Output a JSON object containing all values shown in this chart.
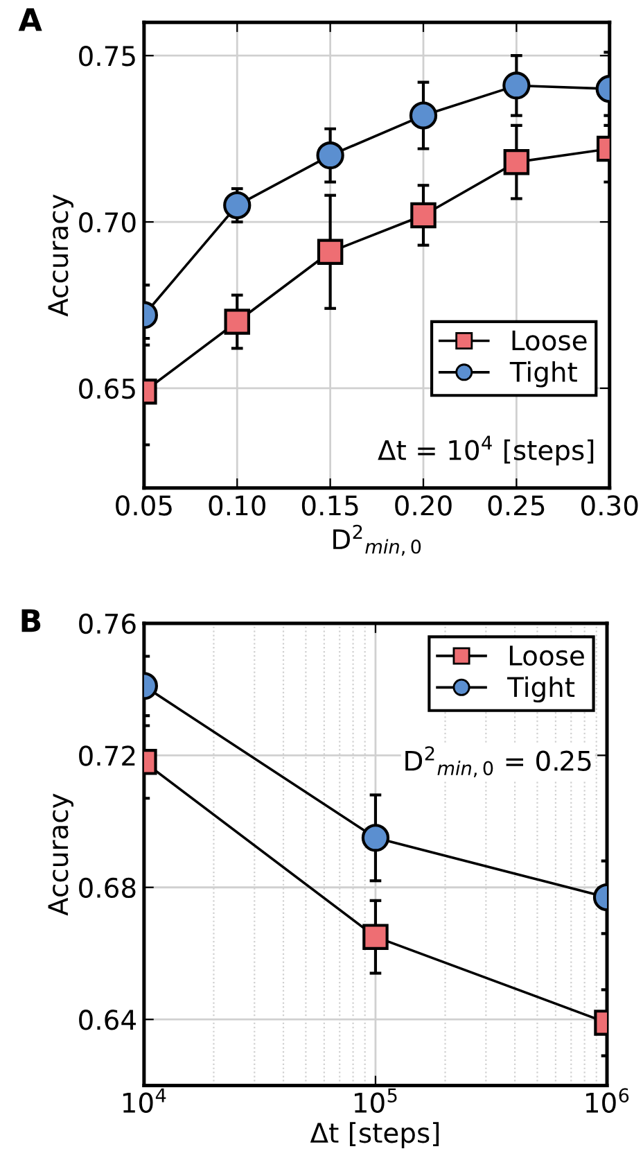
{
  "chart_data": [
    {
      "type": "line",
      "title": "A",
      "xlabel": "D$^{2}$$_{min,0}$",
      "ylabel": "Accuracy",
      "x": [
        0.05,
        0.1,
        0.15,
        0.2,
        0.25,
        0.3
      ],
      "series": [
        {
          "name": "Loose",
          "color": "#ee6e73",
          "marker": "square",
          "values": [
            0.649,
            0.67,
            0.691,
            0.702,
            0.718,
            0.722
          ],
          "errors": [
            0.016,
            0.008,
            0.017,
            0.009,
            0.011,
            0.01
          ]
        },
        {
          "name": "Tight",
          "color": "#5b8fd0",
          "marker": "circle",
          "values": [
            0.672,
            0.705,
            0.72,
            0.732,
            0.741,
            0.74
          ],
          "errors": [
            0.009,
            0.005,
            0.008,
            0.01,
            0.009,
            0.011
          ]
        }
      ],
      "xlim": [
        0.05,
        0.3
      ],
      "xticks": [
        {
          "value": 0.05,
          "label": "0.05"
        },
        {
          "value": 0.1,
          "label": "0.10"
        },
        {
          "value": 0.15,
          "label": "0.15"
        },
        {
          "value": 0.2,
          "label": "0.20"
        },
        {
          "value": 0.25,
          "label": "0.25"
        },
        {
          "value": 0.3,
          "label": "0.30"
        }
      ],
      "ylim": [
        0.62,
        0.76
      ],
      "yticks": [
        {
          "value": 0.65,
          "label": "0.65"
        },
        {
          "value": 0.7,
          "label": "0.70"
        },
        {
          "value": 0.75,
          "label": "0.75"
        }
      ],
      "grid": true,
      "legend": "bottom right",
      "line_style": "solid",
      "annotations": [
        "Δt = 10$^{4}$ [steps]"
      ]
    },
    {
      "type": "line",
      "title": "B",
      "xlabel": "Δt [steps]",
      "ylabel": "Accuracy",
      "log": "x",
      "x": [
        10000,
        100000,
        1000000
      ],
      "series": [
        {
          "name": "Loose",
          "color": "#ee6e73",
          "marker": "square",
          "values": [
            0.718,
            0.665,
            0.639
          ],
          "errors": [
            0.011,
            0.011,
            0.01
          ]
        },
        {
          "name": "Tight",
          "color": "#5b8fd0",
          "marker": "circle",
          "values": [
            0.741,
            0.695,
            0.677
          ],
          "errors": [
            0.009,
            0.013,
            0.011
          ]
        }
      ],
      "xlim": [
        10000,
        1000000
      ],
      "xticks": [
        {
          "value": 10000,
          "label": "10$^{4}$"
        },
        {
          "value": 100000,
          "label": "10$^{5}$"
        },
        {
          "value": 1000000,
          "label": "10$^{6}$"
        }
      ],
      "ylim": [
        0.62,
        0.76
      ],
      "yticks": [
        0.64,
        0.68,
        0.72,
        0.76
      ],
      "grid": true,
      "legend": "top right",
      "line_style": "solid",
      "annotations": [
        "D$^{2}$$_{min,0}$ = 0.25"
      ]
    }
  ]
}
